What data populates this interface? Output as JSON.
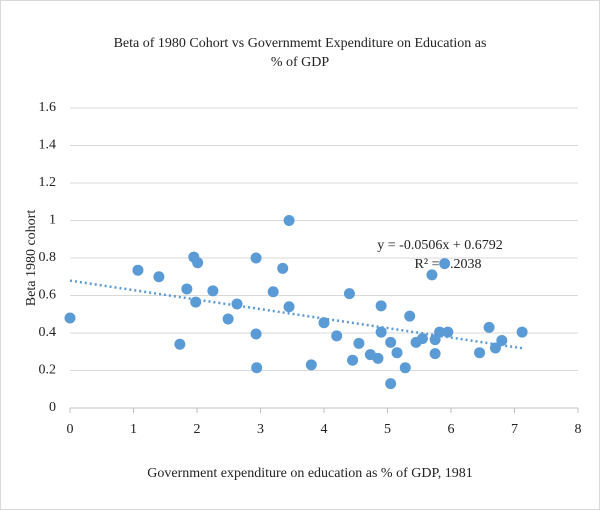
{
  "chart_data": {
    "type": "scatter",
    "title": "Beta of 1980 Cohort vs Governmemt Expenditure on Education as % of GDP",
    "x_label": "Government expenditure on education as % of GDP, 1981",
    "y_label": "Beta 1980 cohort",
    "x": [
      0,
      1.07,
      1.4,
      1.73,
      1.84,
      1.95,
      2.01,
      1.98,
      2.25,
      2.49,
      2.63,
      2.93,
      2.93,
      2.94,
      3.2,
      3.35,
      3.45,
      3.45,
      3.8,
      4.0,
      4.2,
      4.4,
      4.45,
      4.55,
      4.73,
      4.85,
      4.9,
      4.9,
      5.05,
      5.05,
      5.15,
      5.28,
      5.35,
      5.45,
      5.55,
      5.7,
      5.75,
      5.75,
      5.82,
      5.9,
      5.95,
      6.45,
      6.6,
      6.7,
      6.8,
      7.12
    ],
    "series": [
      {
        "name": "Beta 1980 cohort",
        "color": "#5b9bd5",
        "values": [
          0.48,
          0.735,
          0.7,
          0.34,
          0.635,
          0.805,
          0.775,
          0.565,
          0.625,
          0.475,
          0.555,
          0.8,
          0.395,
          0.215,
          0.62,
          0.745,
          1.0,
          0.54,
          0.23,
          0.455,
          0.385,
          0.61,
          0.255,
          0.345,
          0.285,
          0.265,
          0.545,
          0.405,
          0.13,
          0.35,
          0.295,
          0.215,
          0.49,
          0.35,
          0.37,
          0.71,
          0.365,
          0.29,
          0.405,
          0.77,
          0.405,
          0.295,
          0.43,
          0.32,
          0.36,
          0.405
        ]
      }
    ],
    "trendline": {
      "slope": -0.0506,
      "intercept": 0.6792,
      "color": "#5b9bd5"
    },
    "annotations": [
      "y = -0.0506x + 0.6792",
      "R² = 0.2038"
    ],
    "xlim": [
      0,
      8
    ],
    "xticks": [
      0,
      1,
      2,
      3,
      4,
      5,
      6,
      7,
      8
    ],
    "ylim": [
      0,
      1.6
    ],
    "yticks": [
      0,
      0.2,
      0.4,
      0.6,
      0.8,
      1,
      1.2,
      1.4,
      1.6
    ],
    "grid": true
  }
}
